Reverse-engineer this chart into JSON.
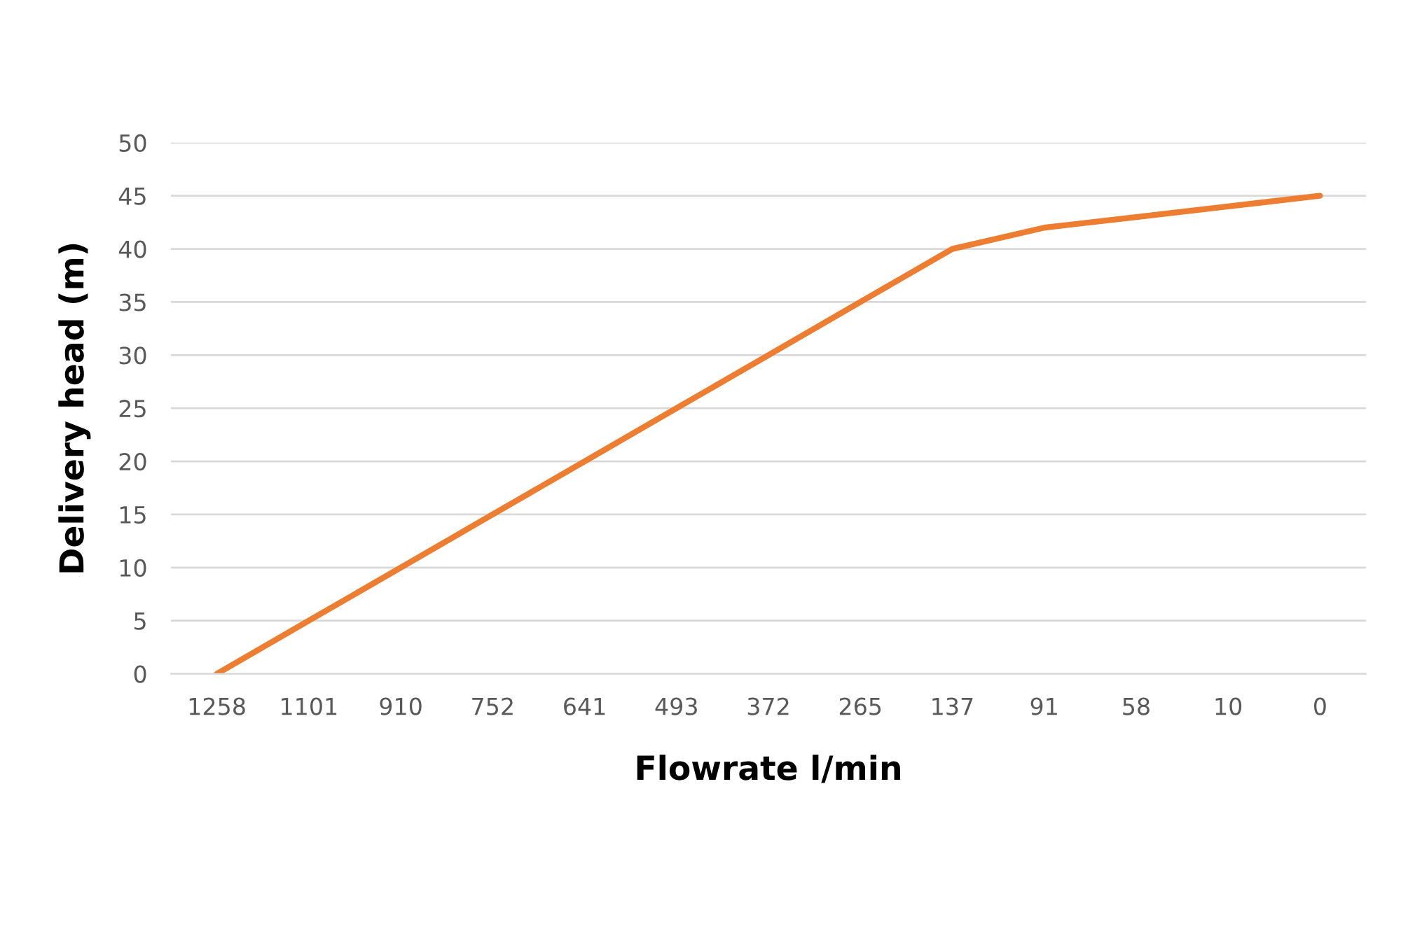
{
  "chart_data": {
    "type": "line",
    "xlabel": "Flowrate l/min",
    "ylabel": "Delivery head (m)",
    "categories": [
      "1258",
      "1101",
      "910",
      "752",
      "641",
      "493",
      "372",
      "265",
      "137",
      "91",
      "58",
      "10",
      "0"
    ],
    "series": [
      {
        "color": "#ed7d31",
        "values": [
          0,
          5,
          10,
          15,
          20,
          25,
          30,
          35,
          40,
          42,
          43,
          44,
          45
        ]
      }
    ],
    "ylim": [
      0,
      50
    ],
    "yticks": [
      0,
      5,
      10,
      15,
      20,
      25,
      30,
      35,
      40,
      45,
      50
    ],
    "grid": "y",
    "marker": "none",
    "line_style": "solid"
  }
}
